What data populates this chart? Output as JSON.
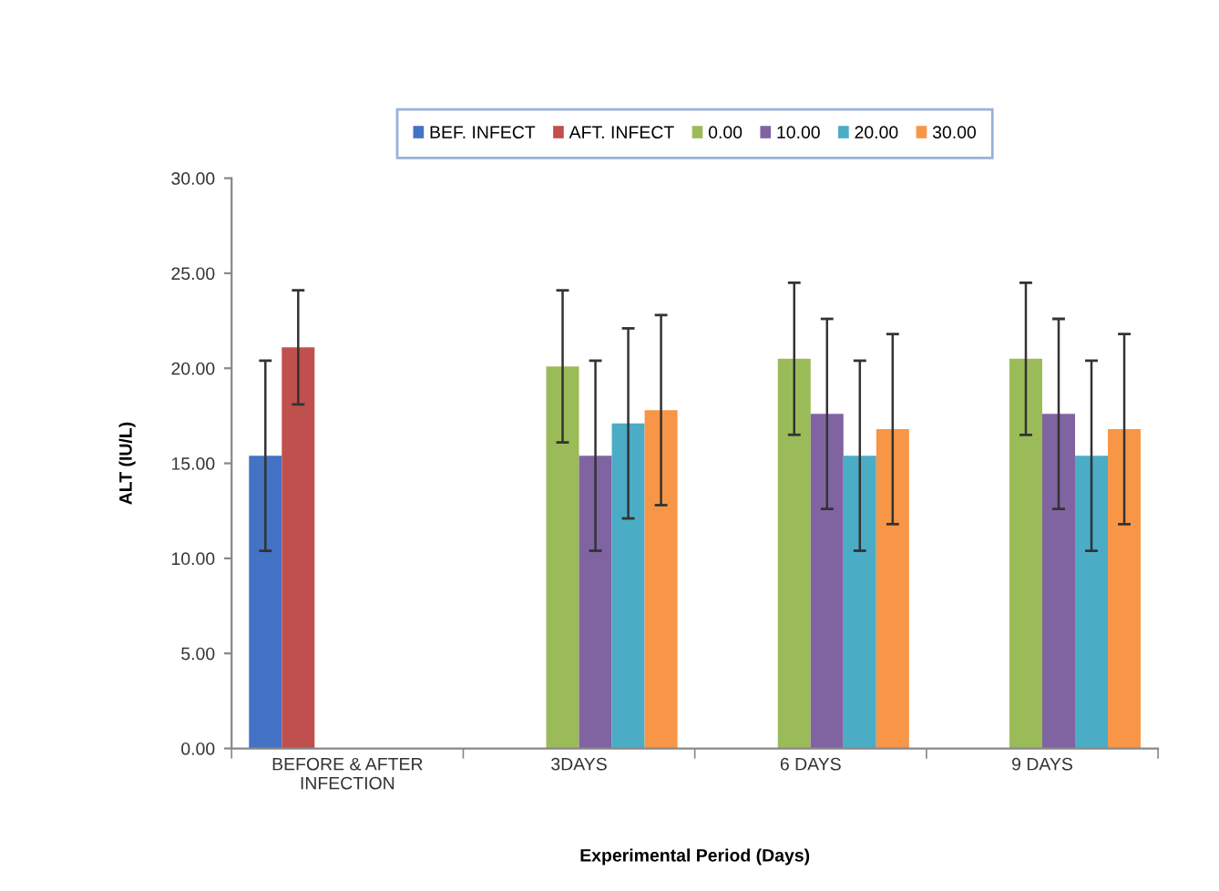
{
  "chart_data": {
    "type": "bar",
    "xlabel": "Experimental Period (Days)",
    "ylabel": "ALT (IU/L)",
    "categories": [
      "BEFORE & AFTER\nINFECTION",
      "3DAYS",
      "6 DAYS",
      "9 DAYS"
    ],
    "series": [
      {
        "name": "BEF. INFECT",
        "color": "#4472c4",
        "values": [
          15.4,
          null,
          null,
          null
        ],
        "errors": [
          5.0,
          null,
          null,
          null
        ]
      },
      {
        "name": "AFT. INFECT",
        "color": "#c0504d",
        "values": [
          21.1,
          null,
          null,
          null
        ],
        "errors": [
          3.0,
          null,
          null,
          null
        ]
      },
      {
        "name": "0.00",
        "color": "#9bbb59",
        "values": [
          null,
          20.1,
          20.5,
          20.5
        ],
        "errors": [
          null,
          4.0,
          4.0,
          4.0
        ]
      },
      {
        "name": "10.00",
        "color": "#8064a2",
        "values": [
          null,
          15.4,
          17.6,
          17.6
        ],
        "errors": [
          null,
          5.0,
          5.0,
          5.0
        ]
      },
      {
        "name": "20.00",
        "color": "#4bacc6",
        "values": [
          null,
          17.1,
          15.4,
          15.4
        ],
        "errors": [
          null,
          5.0,
          5.0,
          5.0
        ]
      },
      {
        "name": "30.00",
        "color": "#f79646",
        "values": [
          null,
          17.8,
          16.8,
          16.8
        ],
        "errors": [
          null,
          5.0,
          5.0,
          5.0
        ]
      }
    ],
    "ylim": [
      0,
      30
    ],
    "yticks": [
      {
        "value": 0,
        "label": "0.00"
      },
      {
        "value": 5,
        "label": "5.00"
      },
      {
        "value": 10,
        "label": "10.00"
      },
      {
        "value": 15,
        "label": "15.00"
      },
      {
        "value": 20,
        "label": "20.00"
      },
      {
        "value": 25,
        "label": "25.00"
      },
      {
        "value": 30,
        "label": "30.00"
      }
    ],
    "grid": false,
    "legend": "top"
  }
}
